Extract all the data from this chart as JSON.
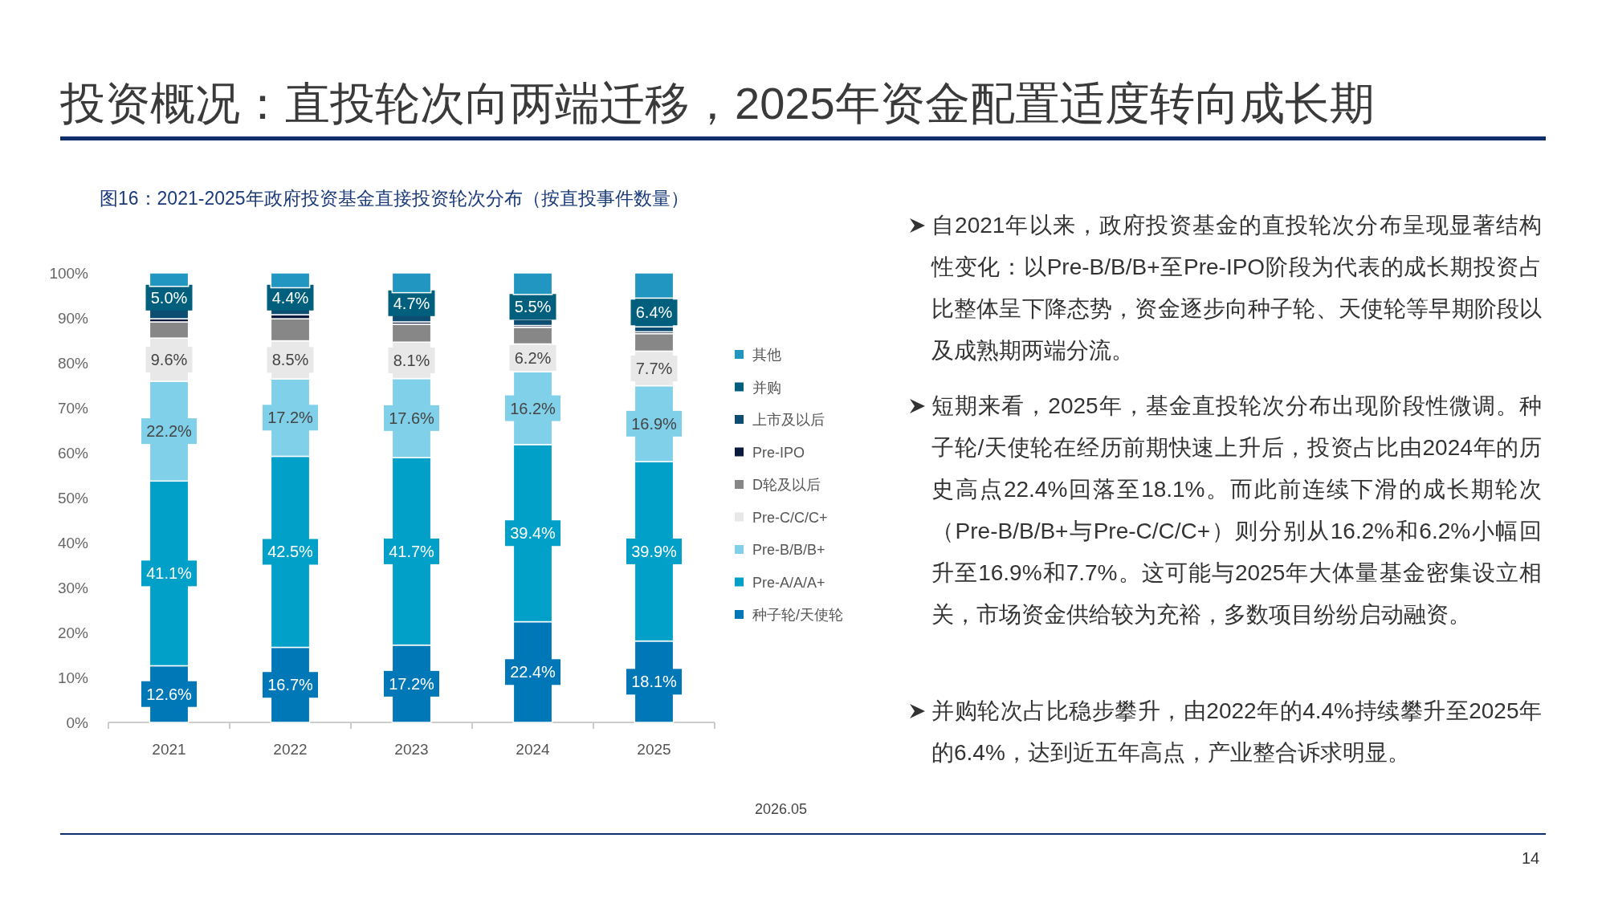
{
  "chart_data": {
    "type": "bar",
    "stacked": true,
    "title": "投资概况：直投轮次向两端迁移，2025年资金配置适度转向成长期",
    "subtitle": "图16：2021-2025年政府投资基金直接投资轮次分布（按直投事件数量）",
    "categories": [
      "2021",
      "2022",
      "2023",
      "2024",
      "2025"
    ],
    "ylim": [
      0,
      100
    ],
    "yticks": [
      {
        "value": 0,
        "label": "0%"
      },
      {
        "value": 10,
        "label": "10%"
      },
      {
        "value": 20,
        "label": "20%"
      },
      {
        "value": 30,
        "label": "30%"
      },
      {
        "value": 40,
        "label": "40%"
      },
      {
        "value": 50,
        "label": "50%"
      },
      {
        "value": 60,
        "label": "60%"
      },
      {
        "value": 70,
        "label": "70%"
      },
      {
        "value": 80,
        "label": "80%"
      },
      {
        "value": 90,
        "label": "90%"
      },
      {
        "value": 100,
        "label": "100%"
      }
    ],
    "grid": false,
    "legend": "right",
    "series": [
      {
        "name": "种子轮/天使轮",
        "color": "#0077b6",
        "values": [
          12.6,
          16.7,
          17.2,
          22.4,
          18.1
        ],
        "value_labels": [
          "12.6%",
          "16.7%",
          "17.2%",
          "22.4%",
          "18.1%"
        ]
      },
      {
        "name": "Pre-A/A/A+",
        "color": "#00a0c9",
        "values": [
          41.1,
          42.5,
          41.7,
          39.4,
          39.9
        ],
        "value_labels": [
          "41.1%",
          "42.5%",
          "41.7%",
          "39.4%",
          "39.9%"
        ]
      },
      {
        "name": "Pre-B/B/B+",
        "color": "#80d0ea",
        "values": [
          22.2,
          17.2,
          17.6,
          16.2,
          16.9
        ],
        "value_labels": [
          "22.2%",
          "17.2%",
          "17.6%",
          "16.2%",
          "16.9%"
        ]
      },
      {
        "name": "Pre-C/C/C+",
        "color": "#e8e8e8",
        "values": [
          9.6,
          8.5,
          8.1,
          6.2,
          7.7
        ],
        "value_labels": [
          "9.6%",
          "8.5%",
          "8.1%",
          "6.2%",
          "7.7%"
        ]
      },
      {
        "name": "D轮及以后",
        "color": "#878787",
        "values": [
          3.6,
          4.9,
          4.0,
          3.7,
          3.9
        ]
      },
      {
        "name": "Pre-IPO",
        "color": "#0b1a3c",
        "values": [
          0.7,
          0.9,
          0.5,
          0.4,
          0.4
        ]
      },
      {
        "name": "上市及以后",
        "color": "#0d4d72",
        "values": [
          2.2,
          1.6,
          1.8,
          1.4,
          1.1
        ]
      },
      {
        "name": "并购",
        "color": "#005f7c",
        "values": [
          5.0,
          4.4,
          4.7,
          5.5,
          6.4
        ],
        "value_labels": [
          "5.0%",
          "4.4%",
          "4.7%",
          "5.5%",
          "6.4%"
        ]
      },
      {
        "name": "其他",
        "color": "#2196c0",
        "values": [
          3.0,
          3.3,
          4.4,
          4.8,
          5.6
        ]
      }
    ],
    "annotations": [
      "自2021年以来，政府投资基金的直投轮次分布呈现显著结构性变化：以Pre-B/B/B+至Pre-IPO阶段为代表的成长期投资占比整体呈下降态势，资金逐步向种子轮、天使轮等早期阶段以及成熟期两端分流。",
      "短期来看，2025年，基金直投轮次分布出现阶段性微调。种子轮/天使轮在经历前期快速上升后，投资占比由2024年的历史高点22.4%回落至18.1%。而此前连续下滑的成长期轮次（Pre-B/B/B+与Pre-C/C/C+）则分别从16.2%和6.2%小幅回升至16.9%和7.7%。这可能与2025年大体量基金密集设立相关，市场资金供给较为充裕，多数项目纷纷启动融资。",
      "并购轮次占比稳步攀升，由2022年的4.4%持续攀升至2025年的6.4%，达到近五年高点，产业整合诉求明显。",
      "2026.05",
      "14"
    ]
  }
}
